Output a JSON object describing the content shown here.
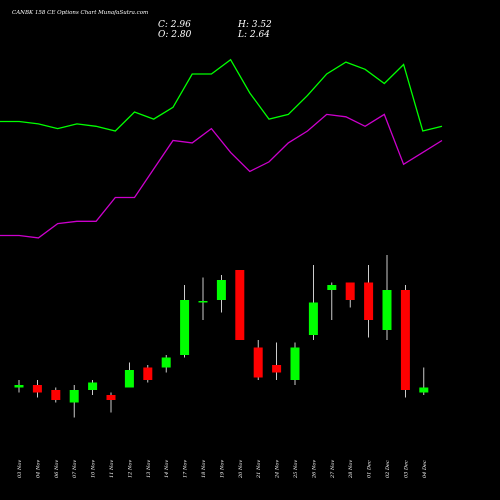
{
  "title": "CANBK 158  CE Options  Chart MunafaSutra.com",
  "ohlc": {
    "close_label": "C: 2.96",
    "open_label": "O: 2.80",
    "high_label": "H: 3.52",
    "low_label": "L: 2.64"
  },
  "colors": {
    "background": "#000000",
    "up": "#00ff00",
    "down": "#ff0000",
    "wick": "#ffffff",
    "upper_line": "#00ff00",
    "lower_line": "#cc00cc",
    "text": "#ffffff"
  },
  "chart_data": [
    {
      "type": "line",
      "series": [
        {
          "color": "#00ff00",
          "values": [
            3.6,
            3.6,
            3.55,
            3.45,
            3.55,
            3.5,
            3.4,
            3.8,
            3.65,
            3.9,
            4.6,
            4.6,
            4.9,
            4.2,
            3.65,
            3.75,
            4.15,
            4.6,
            4.85,
            4.7,
            4.4,
            4.8,
            3.4,
            3.5
          ]
        },
        {
          "color": "#cc00cc",
          "values": [
            1.2,
            1.2,
            1.15,
            1.45,
            1.5,
            1.5,
            2.0,
            2.0,
            2.6,
            3.2,
            3.15,
            3.45,
            2.95,
            2.55,
            2.75,
            3.15,
            3.4,
            3.75,
            3.7,
            3.5,
            3.75,
            2.7,
            2.95,
            3.2
          ]
        }
      ]
    },
    {
      "type": "candlestick",
      "categories": [
        "03 Nov",
        "04 Nov",
        "06 Nov",
        "07 Nov",
        "10 Nov",
        "11 Nov",
        "12 Nov",
        "13 Nov",
        "14 Nov",
        "17 Nov",
        "18 Nov",
        "19 Nov",
        "20 Nov",
        "21 Nov",
        "24 Nov",
        "25 Nov",
        "26 Nov",
        "27 Nov",
        "28 Nov",
        "01 Dec",
        "02 Dec",
        "03 Dec",
        "04 Dec"
      ],
      "candles": [
        {
          "open": 1.65,
          "close": 1.7,
          "high": 1.8,
          "low": 1.55
        },
        {
          "open": 1.7,
          "close": 1.55,
          "high": 1.8,
          "low": 1.45
        },
        {
          "open": 1.6,
          "close": 1.4,
          "high": 1.65,
          "low": 1.35
        },
        {
          "open": 1.35,
          "close": 1.6,
          "high": 1.7,
          "low": 1.05
        },
        {
          "open": 1.6,
          "close": 1.75,
          "high": 1.8,
          "low": 1.5
        },
        {
          "open": 1.5,
          "close": 1.4,
          "high": 1.55,
          "low": 1.15
        },
        {
          "open": 1.65,
          "close": 2.0,
          "high": 2.15,
          "low": 1.65
        },
        {
          "open": 2.05,
          "close": 1.8,
          "high": 2.1,
          "low": 1.75
        },
        {
          "open": 2.05,
          "close": 2.25,
          "high": 2.3,
          "low": 1.95
        },
        {
          "open": 2.3,
          "close": 3.4,
          "high": 3.7,
          "low": 2.25
        },
        {
          "open": 3.35,
          "close": 3.38,
          "high": 3.85,
          "low": 3.0
        },
        {
          "open": 3.4,
          "close": 3.8,
          "high": 3.9,
          "low": 3.15
        },
        {
          "open": 4.0,
          "close": 2.6,
          "high": 4.0,
          "low": 2.6
        },
        {
          "open": 2.45,
          "close": 1.85,
          "high": 2.6,
          "low": 1.8
        },
        {
          "open": 2.1,
          "close": 1.95,
          "high": 2.55,
          "low": 1.8
        },
        {
          "open": 1.8,
          "close": 2.45,
          "high": 2.55,
          "low": 1.7
        },
        {
          "open": 2.7,
          "close": 3.35,
          "high": 4.1,
          "low": 2.6
        },
        {
          "open": 3.6,
          "close": 3.7,
          "high": 3.75,
          "low": 3.0
        },
        {
          "open": 3.75,
          "close": 3.4,
          "high": 3.75,
          "low": 3.25
        },
        {
          "open": 3.75,
          "close": 3.0,
          "high": 4.1,
          "low": 2.65
        },
        {
          "open": 2.8,
          "close": 3.6,
          "high": 4.3,
          "low": 2.6
        },
        {
          "open": 3.6,
          "close": 1.6,
          "high": 3.7,
          "low": 1.45
        },
        {
          "open": 1.55,
          "close": 1.65,
          "high": 2.05,
          "low": 1.5
        }
      ]
    }
  ]
}
